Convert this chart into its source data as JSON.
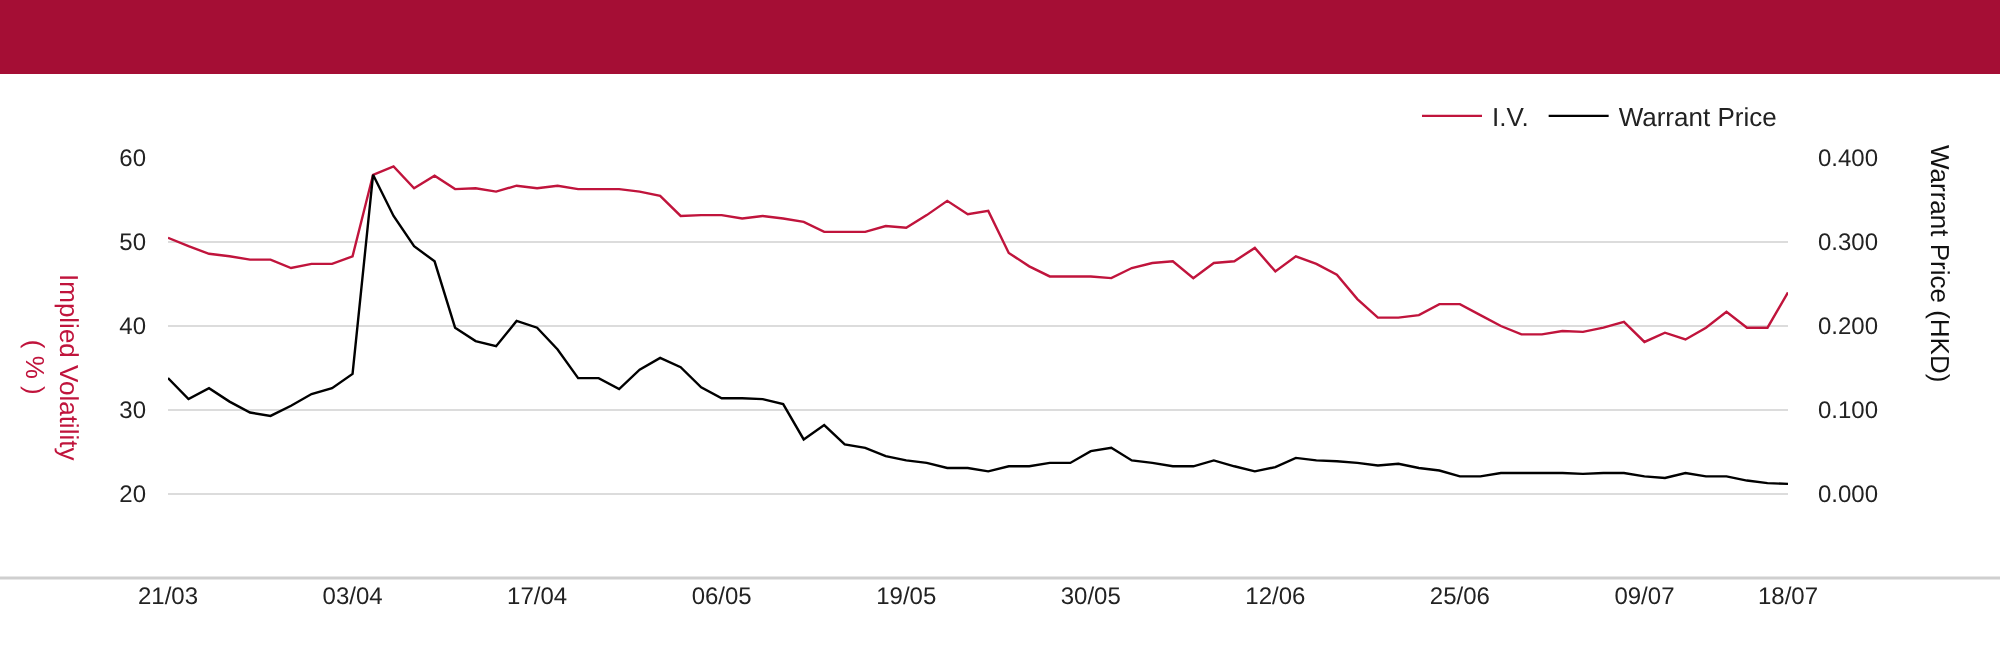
{
  "chart_data": {
    "type": "line",
    "ylabel": "Implied Volatility\n( % )",
    "y2label": "Warrant Price (HKD)",
    "categories": [
      "21/03",
      null,
      null,
      null,
      null,
      null,
      null,
      null,
      null,
      "03/04",
      null,
      null,
      null,
      null,
      null,
      null,
      null,
      null,
      "17/04",
      null,
      null,
      null,
      null,
      null,
      null,
      null,
      null,
      "06/05",
      null,
      null,
      null,
      null,
      null,
      null,
      null,
      null,
      "19/05",
      null,
      null,
      null,
      null,
      null,
      null,
      null,
      null,
      "30/05",
      null,
      null,
      null,
      null,
      null,
      null,
      null,
      null,
      "12/06",
      null,
      null,
      null,
      null,
      null,
      null,
      null,
      null,
      "25/06",
      null,
      null,
      null,
      null,
      null,
      null,
      null,
      null,
      "09/07",
      null,
      null,
      null,
      null,
      null,
      null,
      "18/07"
    ],
    "series": [
      {
        "name": "I.V.",
        "color": "#c0143c",
        "values": [
          50.5,
          49.5,
          48.6,
          48.3,
          47.9,
          47.9,
          46.9,
          47.4,
          47.4,
          48.3,
          58.0,
          59.0,
          56.4,
          57.9,
          56.3,
          56.4,
          56.0,
          56.7,
          56.4,
          56.7,
          56.3,
          56.3,
          56.3,
          56.0,
          55.5,
          53.1,
          53.2,
          53.2,
          52.8,
          53.1,
          52.8,
          52.4,
          51.2,
          51.2,
          51.2,
          51.9,
          51.7,
          53.2,
          54.9,
          53.3,
          53.7,
          48.7,
          47.1,
          45.9,
          45.9,
          45.9,
          45.7,
          46.9,
          47.5,
          47.7,
          45.7,
          47.5,
          47.7,
          49.3,
          46.5,
          48.3,
          47.4,
          46.1,
          43.2,
          41.0,
          41.0,
          41.3,
          42.6,
          42.6,
          41.3,
          40.0,
          39.0,
          39.0,
          39.4,
          39.3,
          39.8,
          40.5,
          38.1,
          39.2,
          38.4,
          39.8,
          41.7,
          39.8,
          39.8,
          44.0
        ]
      },
      {
        "name": "Warrant Price",
        "color": "#000000",
        "axis": "y2",
        "values": [
          0.138,
          0.113,
          0.126,
          0.11,
          0.097,
          0.093,
          0.105,
          0.119,
          0.126,
          0.143,
          0.38,
          0.331,
          0.295,
          0.277,
          0.198,
          0.182,
          0.176,
          0.206,
          0.198,
          0.172,
          0.138,
          0.138,
          0.125,
          0.148,
          0.162,
          0.151,
          0.127,
          0.114,
          0.114,
          0.113,
          0.107,
          0.065,
          0.082,
          0.059,
          0.055,
          0.045,
          0.04,
          0.037,
          0.031,
          0.031,
          0.027,
          0.033,
          0.033,
          0.037,
          0.037,
          0.051,
          0.055,
          0.04,
          0.037,
          0.033,
          0.033,
          0.04,
          0.033,
          0.027,
          0.032,
          0.043,
          0.04,
          0.039,
          0.037,
          0.034,
          0.036,
          0.031,
          0.028,
          0.021,
          0.021,
          0.025,
          0.025,
          0.025,
          0.025,
          0.024,
          0.025,
          0.025,
          0.021,
          0.019,
          0.025,
          0.021,
          0.021,
          0.016,
          0.013,
          0.012
        ]
      }
    ],
    "ylim": [
      10,
      60
    ],
    "yticks": [
      20,
      30,
      40,
      50,
      60
    ],
    "y2lim": [
      -0.1,
      0.4
    ],
    "y2ticks": [
      {
        "value": 0,
        "label": "0.000"
      },
      {
        "value": 0.1,
        "label": "0.100"
      },
      {
        "value": 0.2,
        "label": "0.200"
      },
      {
        "value": 0.3,
        "label": "0.300"
      },
      {
        "value": 0.4,
        "label": "0.400"
      }
    ],
    "grid": "y",
    "legend": "top right",
    "marker": "none",
    "line_style": "solid"
  }
}
